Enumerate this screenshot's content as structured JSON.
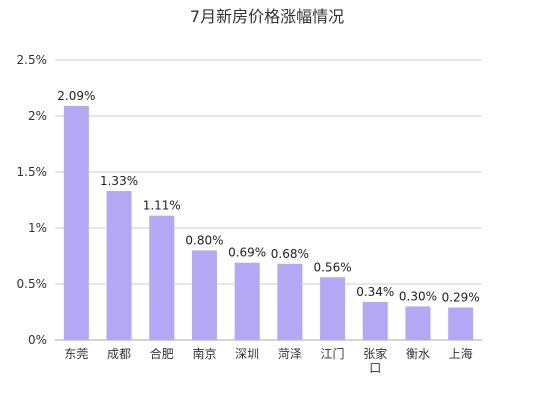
{
  "chart_data": {
    "type": "bar",
    "title": "7月新房价格涨幅情况",
    "xlabel": "",
    "ylabel": "",
    "categories": [
      "东莞",
      "成都",
      "合肥",
      "南京",
      "深圳",
      "菏泽",
      "江门",
      "张家口",
      "衡水",
      "上海"
    ],
    "values": [
      2.09,
      1.33,
      1.11,
      0.8,
      0.69,
      0.68,
      0.56,
      0.34,
      0.3,
      0.29
    ],
    "data_labels": [
      "2.09%",
      "1.33%",
      "1.11%",
      "0.80%",
      "0.69%",
      "0.68%",
      "0.56%",
      "0.34%",
      "0.30%",
      "0.29%"
    ],
    "yticks": [
      0,
      0.5,
      1,
      1.5,
      2,
      2.5
    ],
    "ytick_labels": [
      "0%",
      "0.5%",
      "1%",
      "1.5%",
      "2%",
      "2.5%"
    ],
    "ylim": [
      0,
      2.5
    ],
    "grid": true,
    "legend": "none",
    "bar_color": "#b4a8f4"
  }
}
